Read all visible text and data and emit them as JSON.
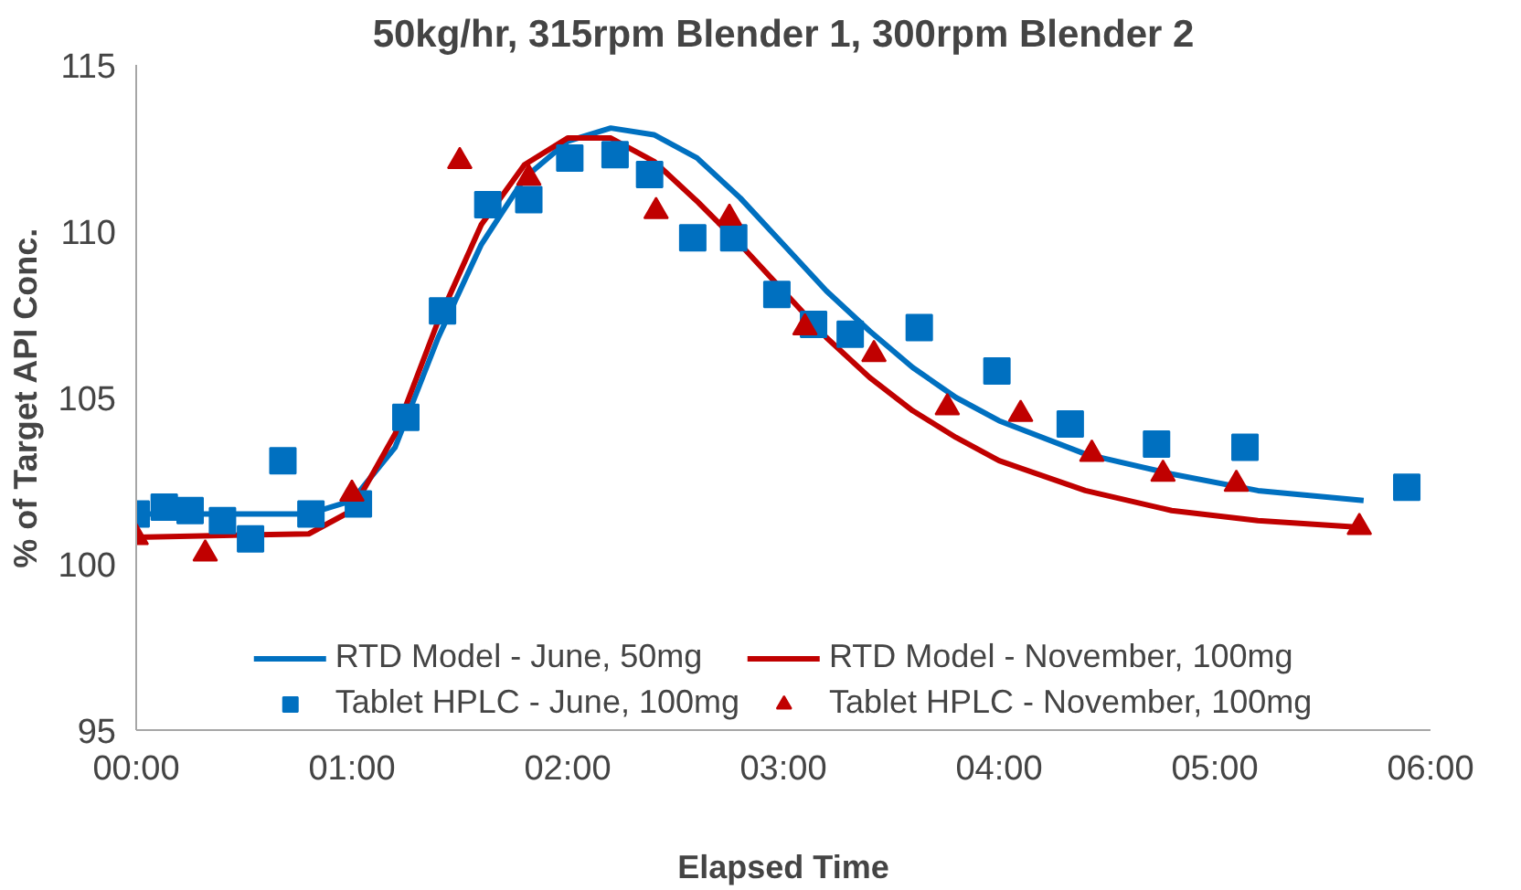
{
  "chart_data": {
    "type": "scatter",
    "title": "50kg/hr, 315rpm Blender 1, 300rpm Blender 2",
    "xlabel": "Elapsed Time",
    "ylabel": "% of Target API Conc.",
    "xlim": [
      0,
      6
    ],
    "xticks": [
      {
        "value": 0,
        "label": "00:00"
      },
      {
        "value": 1,
        "label": "01:00"
      },
      {
        "value": 2,
        "label": "02:00"
      },
      {
        "value": 3,
        "label": "03:00"
      },
      {
        "value": 4,
        "label": "04:00"
      },
      {
        "value": 5,
        "label": "05:00"
      },
      {
        "value": 6,
        "label": "06:00"
      }
    ],
    "ylim": [
      95,
      115
    ],
    "yticks": [
      95,
      100,
      105,
      110,
      115
    ],
    "grid": false,
    "legend": "bottom",
    "series": [
      {
        "name": "RTD Model - June, 50mg",
        "type": "line",
        "marker": "none",
        "line_style": "solid",
        "color": "#0070c0",
        "x": [
          0,
          0.8,
          1.0,
          1.2,
          1.4,
          1.6,
          1.8,
          2.0,
          2.2,
          2.4,
          2.6,
          2.8,
          3.0,
          3.2,
          3.4,
          3.6,
          3.8,
          4.0,
          4.4,
          4.8,
          5.2,
          5.69
        ],
        "values": [
          101.5,
          101.5,
          101.9,
          103.5,
          106.8,
          109.6,
          111.6,
          112.7,
          113.1,
          112.9,
          112.2,
          111.0,
          109.6,
          108.2,
          107.0,
          105.9,
          105.0,
          104.3,
          103.3,
          102.7,
          102.2,
          101.9
        ]
      },
      {
        "name": "RTD Model - November, 100mg",
        "type": "line",
        "marker": "none",
        "line_style": "solid",
        "color": "#c00000",
        "x": [
          0,
          0.8,
          1.0,
          1.2,
          1.4,
          1.6,
          1.8,
          2.0,
          2.2,
          2.4,
          2.6,
          2.8,
          3.0,
          3.2,
          3.4,
          3.6,
          3.8,
          4.0,
          4.4,
          4.8,
          5.2,
          5.67
        ],
        "values": [
          100.8,
          100.9,
          101.6,
          103.9,
          107.3,
          110.2,
          112.0,
          112.8,
          112.8,
          112.1,
          110.9,
          109.6,
          108.2,
          106.8,
          105.6,
          104.6,
          103.8,
          103.1,
          102.2,
          101.6,
          101.3,
          101.1
        ]
      },
      {
        "name": "Tablet HPLC - June, 100mg",
        "marker": "square",
        "color": "#0070c0",
        "x": [
          0,
          0.13,
          0.25,
          0.4,
          0.53,
          0.68,
          0.81,
          1.03,
          1.25,
          1.42,
          1.63,
          1.82,
          2.01,
          2.22,
          2.38,
          2.58,
          2.77,
          2.97,
          3.14,
          3.31,
          3.63,
          3.99,
          4.33,
          4.73,
          5.14,
          5.89
        ],
        "values": [
          101.5,
          101.7,
          101.6,
          101.3,
          100.75,
          103.1,
          101.5,
          101.8,
          104.4,
          107.6,
          110.8,
          110.95,
          112.2,
          112.3,
          111.7,
          109.8,
          109.8,
          108.1,
          107.2,
          106.9,
          107.1,
          105.8,
          104.2,
          103.6,
          103.5,
          102.3
        ]
      },
      {
        "name": "Tablet HPLC - November, 100mg",
        "marker": "triangle",
        "color": "#c00000",
        "x": [
          0,
          0.32,
          1.0,
          1.5,
          1.82,
          2.41,
          2.75,
          3.1,
          3.42,
          3.76,
          4.1,
          4.43,
          4.76,
          5.1,
          5.67
        ],
        "values": [
          100.8,
          100.3,
          102.1,
          112.1,
          111.6,
          110.6,
          110.4,
          107.1,
          106.3,
          104.7,
          104.5,
          103.3,
          102.7,
          102.4,
          101.1
        ]
      }
    ]
  }
}
